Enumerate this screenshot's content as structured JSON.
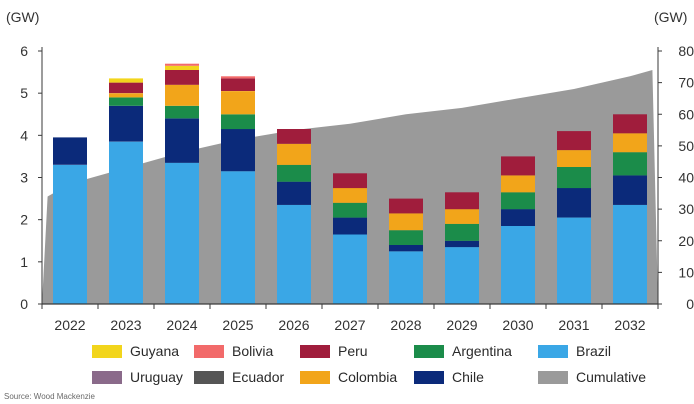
{
  "chart_data": {
    "type": "bar",
    "stacked": true,
    "categories": [
      "2022",
      "2023",
      "2024",
      "2025",
      "2026",
      "2027",
      "2028",
      "2029",
      "2030",
      "2031",
      "2032"
    ],
    "left_axis": {
      "unit_label": "(GW)",
      "ylim": [
        0,
        6
      ],
      "ticks": [
        "0",
        "1",
        "2",
        "3",
        "4",
        "5",
        "6"
      ]
    },
    "right_axis": {
      "unit_label": "(GW)",
      "ylim": [
        0,
        80
      ],
      "ticks": [
        "0",
        "10",
        "20",
        "30",
        "40",
        "50",
        "60",
        "70",
        "80"
      ]
    },
    "series": [
      {
        "name": "Brazil",
        "color": "#3aa7e6",
        "values": [
          3.3,
          3.85,
          3.35,
          3.15,
          2.35,
          1.65,
          1.25,
          1.35,
          1.85,
          2.05,
          2.35
        ]
      },
      {
        "name": "Chile",
        "color": "#0b2a7a",
        "values": [
          0.65,
          0.85,
          1.05,
          1.0,
          0.55,
          0.4,
          0.15,
          0.15,
          0.4,
          0.7,
          0.7
        ]
      },
      {
        "name": "Argentina",
        "color": "#1b8c4a",
        "values": [
          0,
          0.2,
          0.3,
          0.35,
          0.4,
          0.35,
          0.35,
          0.4,
          0.4,
          0.5,
          0.55
        ]
      },
      {
        "name": "Colombia",
        "color": "#f2a51a",
        "values": [
          0,
          0.1,
          0.5,
          0.55,
          0.5,
          0.35,
          0.4,
          0.35,
          0.4,
          0.4,
          0.45
        ]
      },
      {
        "name": "Peru",
        "color": "#a01d3c",
        "values": [
          0,
          0.25,
          0.35,
          0.3,
          0.35,
          0.35,
          0.35,
          0.4,
          0.45,
          0.45,
          0.45
        ]
      },
      {
        "name": "Guyana",
        "color": "#f2d51c",
        "values": [
          0,
          0.1,
          0.1,
          0,
          0,
          0,
          0,
          0,
          0,
          0,
          0
        ]
      },
      {
        "name": "Bolivia",
        "color": "#f26a6a",
        "values": [
          0,
          0,
          0.05,
          0.05,
          0,
          0,
          0,
          0,
          0,
          0,
          0
        ]
      },
      {
        "name": "Uruguay",
        "color": "#8a6a8a",
        "values": [
          0,
          0,
          0,
          0,
          0,
          0,
          0,
          0,
          0,
          0,
          0
        ]
      },
      {
        "name": "Ecuador",
        "color": "#555555",
        "values": [
          0,
          0,
          0,
          0,
          0,
          0,
          0,
          0,
          0,
          0,
          0
        ]
      }
    ],
    "cumulative": {
      "name": "Cumulative",
      "color": "#9a9a9a",
      "type": "area",
      "axis": "right",
      "x": [
        2021.6,
        2022,
        2023,
        2024,
        2025,
        2026,
        2027,
        2028,
        2029,
        2030,
        2031,
        2032,
        2032.4
      ],
      "values": [
        34,
        38,
        43,
        48,
        52,
        55,
        57,
        60,
        62,
        65,
        68,
        72,
        74
      ]
    },
    "legend": {
      "placement": "bottom",
      "items": [
        {
          "name": "Guyana",
          "color": "#f2d51c"
        },
        {
          "name": "Bolivia",
          "color": "#f26a6a"
        },
        {
          "name": "Peru",
          "color": "#a01d3c"
        },
        {
          "name": "Argentina",
          "color": "#1b8c4a"
        },
        {
          "name": "Brazil",
          "color": "#3aa7e6"
        },
        {
          "name": "Uruguay",
          "color": "#8a6a8a"
        },
        {
          "name": "Ecuador",
          "color": "#555555"
        },
        {
          "name": "Colombia",
          "color": "#f2a51a"
        },
        {
          "name": "Chile",
          "color": "#0b2a7a"
        },
        {
          "name": "Cumulative",
          "color": "#9a9a9a"
        }
      ]
    },
    "grid": false
  },
  "source": "Source: Wood Mackenzie"
}
